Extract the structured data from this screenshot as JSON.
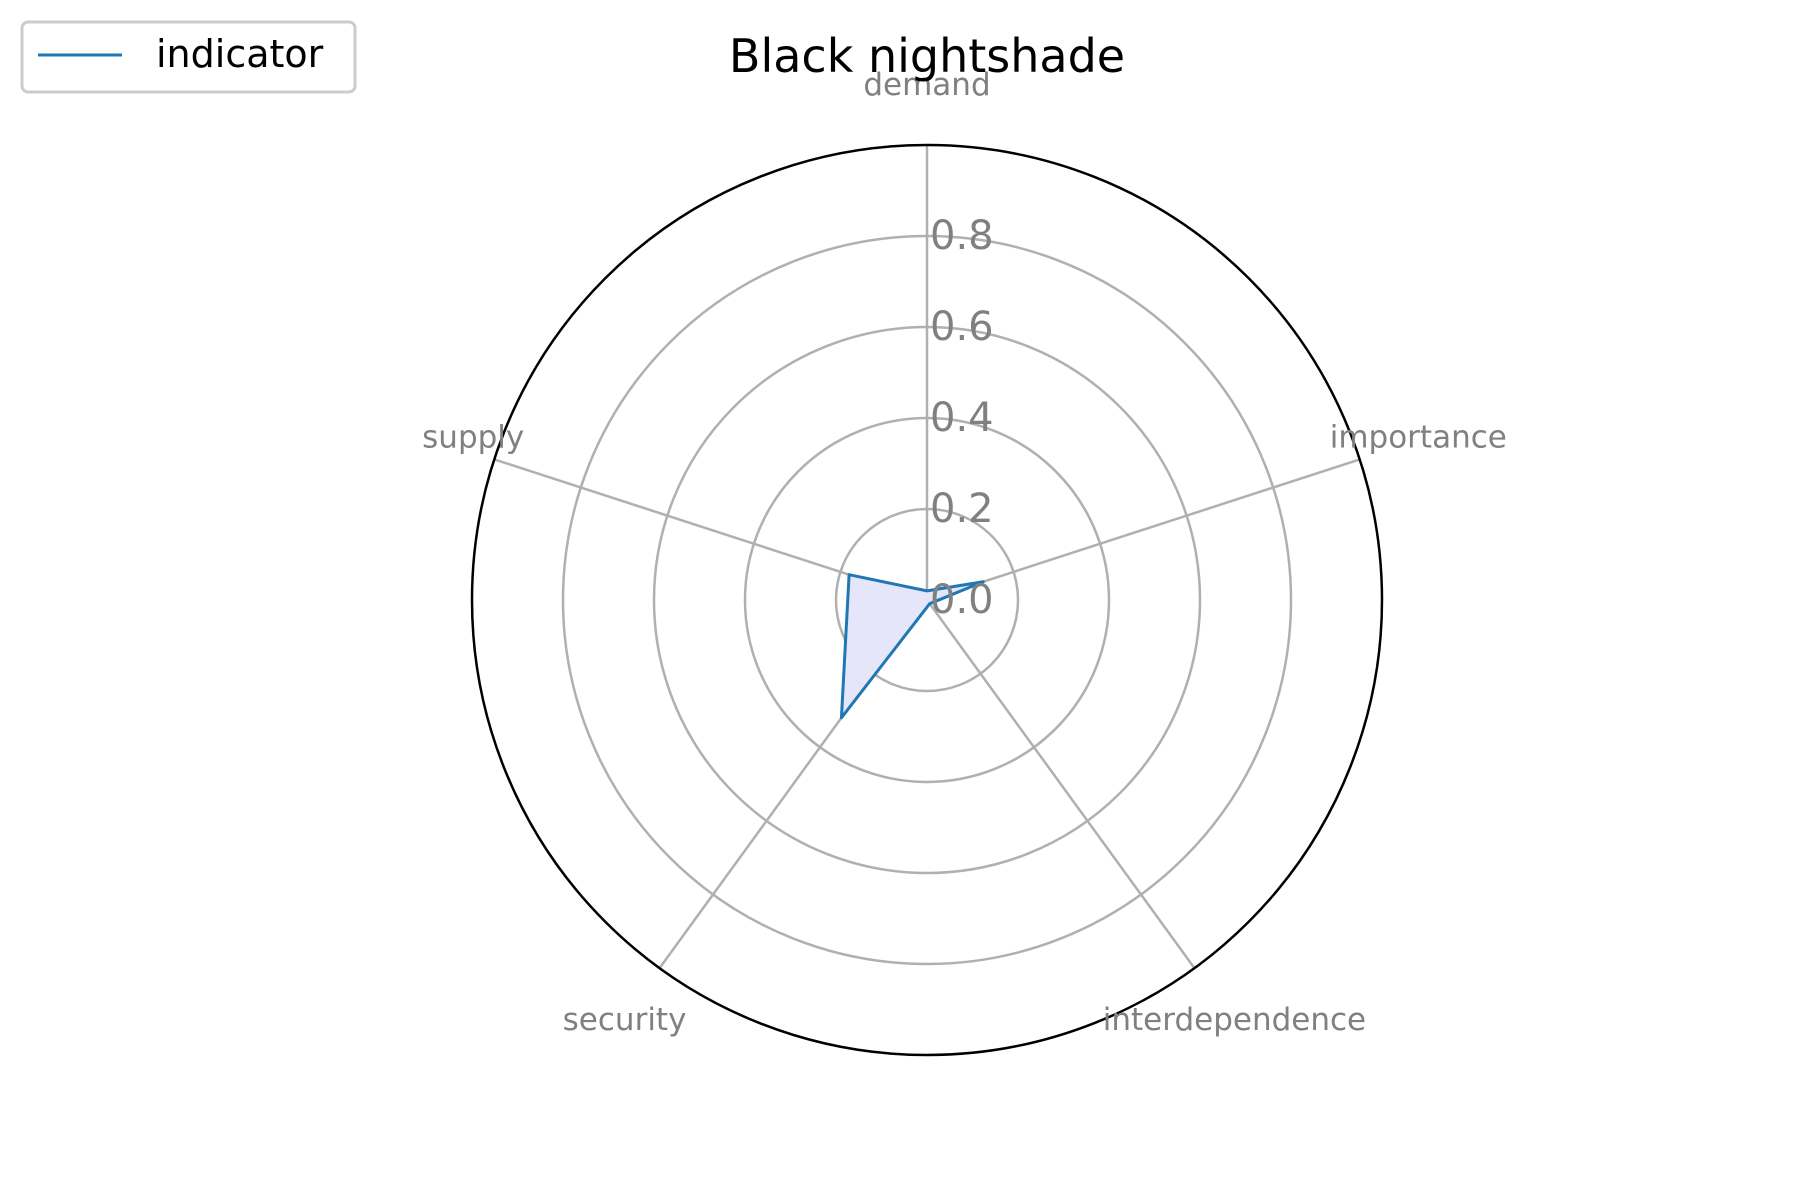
{
  "chart_data": {
    "type": "radar",
    "title": "Black nightshade",
    "axes": [
      "demand",
      "importance",
      "interdependence",
      "security",
      "supply"
    ],
    "series": [
      {
        "name": "indicator",
        "values": [
          0.02,
          0.13,
          0.01,
          0.32,
          0.18
        ]
      }
    ],
    "rlim": [
      0,
      1.0
    ],
    "r_ticks": [
      0.0,
      0.2,
      0.4,
      0.6,
      0.8
    ],
    "r_tick_labels": [
      "0.0",
      "0.2",
      "0.4",
      "0.6",
      "0.8"
    ],
    "grid": true,
    "legend_position": "top-left",
    "colors": {
      "series_line": "#1f77b4",
      "series_fill": "#e6e6fa",
      "grid": "#b0b0b0",
      "frame": "#000000",
      "labels": "#808080"
    }
  }
}
